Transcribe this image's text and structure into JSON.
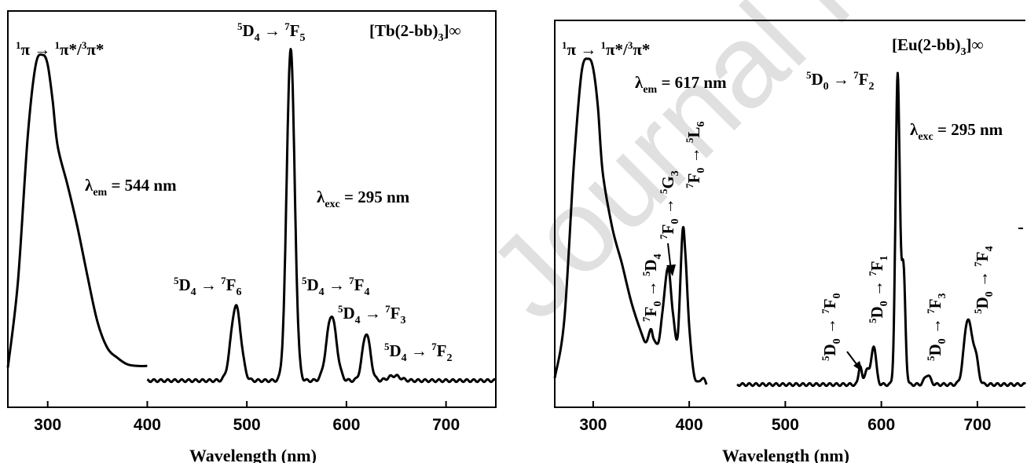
{
  "watermark": "Journal Pre-proof",
  "chart_data": [
    {
      "type": "line",
      "title": "[Tb(2-bb)3]∞",
      "title_parts": {
        "main": "[Tb(2-bb)",
        "sub": "3",
        "tail": "]∞"
      },
      "xlabel": "Wavelength (nm)",
      "ylabel": "",
      "xlim": [
        260,
        750
      ],
      "ylim": [
        0,
        1.12
      ],
      "xticks": [
        300,
        400,
        500,
        600,
        700
      ],
      "grid": false,
      "series": [
        {
          "role": "excitation",
          "x": [
            260,
            270,
            280,
            288,
            295,
            300,
            305,
            310,
            320,
            330,
            340,
            350,
            360,
            370,
            380,
            390,
            400
          ],
          "y": [
            0.04,
            0.3,
            0.75,
            0.97,
            1.0,
            0.97,
            0.86,
            0.72,
            0.6,
            0.47,
            0.32,
            0.18,
            0.1,
            0.07,
            0.05,
            0.045,
            0.045
          ]
        },
        {
          "role": "emission",
          "x_start": 400,
          "x_end": 750,
          "baseline": 0.0,
          "peaks": [
            {
              "center": 489,
              "height": 0.23,
              "width": 5
            },
            {
              "center": 544,
              "height": 1.02,
              "width": 4
            },
            {
              "center": 585,
              "height": 0.2,
              "width": 5
            },
            {
              "center": 620,
              "height": 0.145,
              "width": 4
            },
            {
              "center": 648,
              "height": 0.015,
              "width": 6
            }
          ]
        }
      ],
      "annotations": [
        {
          "id": "pi",
          "text": "1π → 1π*/3π*"
        },
        {
          "id": "lem",
          "text": "λem = 544 nm",
          "label": "λ",
          "sub": "em",
          "value": " = 544 nm"
        },
        {
          "id": "lexc",
          "text": "λexc = 295 nm",
          "label": "λ",
          "sub": "exc",
          "value": " = 295 nm"
        },
        {
          "id": "f5",
          "text": "5D4 → 7F5"
        },
        {
          "id": "f6",
          "text": "5D4 → 7F6"
        },
        {
          "id": "f4",
          "text": "5D4 → 7F4"
        },
        {
          "id": "f3",
          "text": "5D4 → 7F3"
        },
        {
          "id": "f2",
          "text": "5D4 → 7F2"
        }
      ]
    },
    {
      "type": "line",
      "title": "[Eu(2-bb)3]∞",
      "title_parts": {
        "main": "[Eu(2-bb)",
        "sub": "3",
        "tail": "]∞"
      },
      "xlabel": "Wavelength (nm)",
      "ylabel": "",
      "xlim": [
        260,
        750
      ],
      "ylim": [
        0,
        1.12
      ],
      "xticks": [
        300,
        400,
        500,
        600,
        700
      ],
      "grid": false,
      "series": [
        {
          "role": "excitation",
          "x": [
            260,
            270,
            280,
            288,
            295,
            300,
            305,
            310,
            320,
            330,
            340,
            350,
            355,
            360,
            363,
            368,
            372,
            378,
            383,
            388,
            393,
            396,
            400,
            405,
            410,
            415,
            418
          ],
          "y": [
            0.02,
            0.2,
            0.68,
            0.96,
            1.0,
            0.97,
            0.85,
            0.65,
            0.48,
            0.37,
            0.25,
            0.16,
            0.13,
            0.17,
            0.14,
            0.13,
            0.22,
            0.36,
            0.22,
            0.15,
            0.47,
            0.4,
            0.18,
            0.03,
            0.01,
            0.02,
            0.0
          ]
        },
        {
          "role": "emission",
          "x_start": 450,
          "x_end": 750,
          "baseline": 0.0,
          "peaks": [
            {
              "center": 578,
              "height": 0.06,
              "width": 1.6
            },
            {
              "center": 585,
              "height": 0.05,
              "width": 2
            },
            {
              "center": 592,
              "height": 0.12,
              "width": 2.5
            },
            {
              "center": 617,
              "height": 0.95,
              "width": 2.2
            },
            {
              "center": 623,
              "height": 0.35,
              "width": 2
            },
            {
              "center": 648,
              "height": 0.03,
              "width": 3
            },
            {
              "center": 690,
              "height": 0.2,
              "width": 4
            },
            {
              "center": 698,
              "height": 0.08,
              "width": 3
            }
          ]
        }
      ],
      "annotations": [
        {
          "id": "pi",
          "text": "1π → 1π*/3π*"
        },
        {
          "id": "lem",
          "text": "λem = 617 nm",
          "label": "λ",
          "sub": "em",
          "value": " = 617 nm"
        },
        {
          "id": "lexc",
          "text": "λexc = 295 nm",
          "label": "λ",
          "sub": "exc",
          "value": " = 295 nm"
        },
        {
          "id": "f2",
          "text": "5D0 → 7F2"
        },
        {
          "id": "d4",
          "text": "7F0 → 5D4"
        },
        {
          "id": "g3",
          "text": "7F0 → 5G3"
        },
        {
          "id": "l6",
          "text": "7F0 → 5L6"
        },
        {
          "id": "f0",
          "text": "5D0 → 7F0"
        },
        {
          "id": "f1",
          "text": "5D0 → 7F1"
        },
        {
          "id": "f3",
          "text": "5D0 → 7F3"
        },
        {
          "id": "f4",
          "text": "5D0 → 7F4"
        }
      ]
    }
  ]
}
